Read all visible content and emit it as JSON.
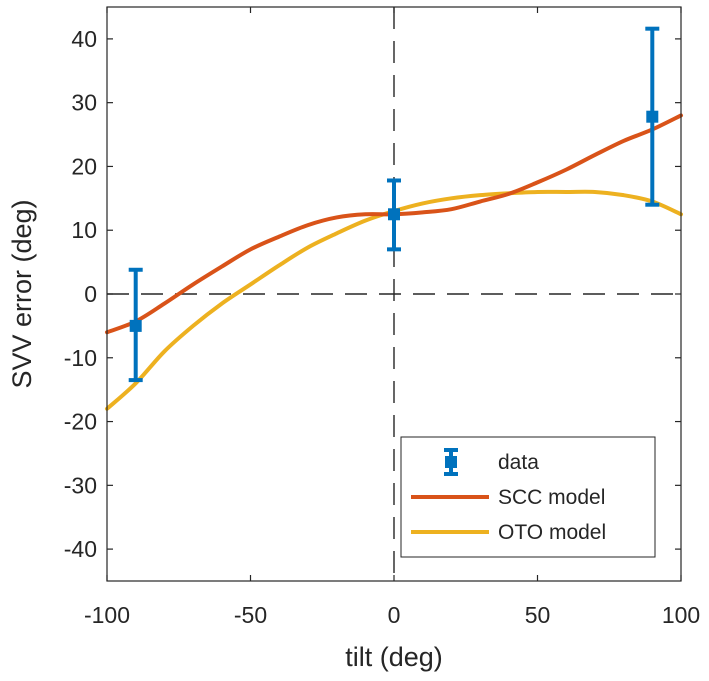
{
  "chart_data": {
    "type": "line",
    "title": "",
    "xlabel": "tilt (deg)",
    "ylabel": "SVV error (deg)",
    "xlim": [
      -100,
      100
    ],
    "ylim": [
      -45,
      45
    ],
    "xticks": [
      -100,
      -50,
      0,
      50,
      100
    ],
    "xtick_labels": [
      "-100",
      "-50",
      "0",
      "50",
      "100"
    ],
    "yticks": [
      40,
      30,
      20,
      10,
      0,
      -10,
      -20,
      -30,
      -40
    ],
    "ytick_labels": [
      "40",
      "30",
      "20",
      "10",
      "0",
      "-10",
      "-20",
      "-30",
      "-40"
    ],
    "grid": false,
    "reference_lines": {
      "x": 0,
      "y": 0,
      "style": "dashed"
    },
    "legend_position": "bottom-right",
    "series": [
      {
        "name": "data",
        "kind": "errorbar",
        "color": "#0072BD",
        "points": [
          {
            "x": -90,
            "y": -5,
            "lower": -13.5,
            "upper": 3.8
          },
          {
            "x": 0,
            "y": 12.5,
            "lower": 7,
            "upper": 17.8
          },
          {
            "x": 90,
            "y": 27.8,
            "lower": 14,
            "upper": 41.6
          }
        ]
      },
      {
        "name": "SCC model",
        "kind": "line",
        "color": "#D95319",
        "x": [
          -100,
          -90,
          -80,
          -70,
          -60,
          -50,
          -40,
          -30,
          -20,
          -10,
          0,
          10,
          20,
          30,
          40,
          50,
          60,
          70,
          80,
          90,
          100
        ],
        "y": [
          -6,
          -4.3,
          -1.5,
          1.5,
          4.3,
          7,
          9,
          10.8,
          12,
          12.5,
          12.5,
          12.8,
          13.3,
          14.5,
          15.7,
          17.5,
          19.5,
          21.8,
          24,
          25.8,
          28
        ]
      },
      {
        "name": "OTO model",
        "kind": "line",
        "color": "#EDB120",
        "x": [
          -100,
          -90,
          -80,
          -70,
          -60,
          -50,
          -40,
          -30,
          -20,
          -10,
          0,
          10,
          20,
          30,
          40,
          50,
          60,
          70,
          80,
          90,
          100
        ],
        "y": [
          -18,
          -14,
          -9,
          -5,
          -1.5,
          1.5,
          4.5,
          7.3,
          9.5,
          11.5,
          13,
          14.2,
          15,
          15.5,
          15.8,
          16,
          16,
          16,
          15.5,
          14.5,
          12.5
        ]
      }
    ]
  }
}
